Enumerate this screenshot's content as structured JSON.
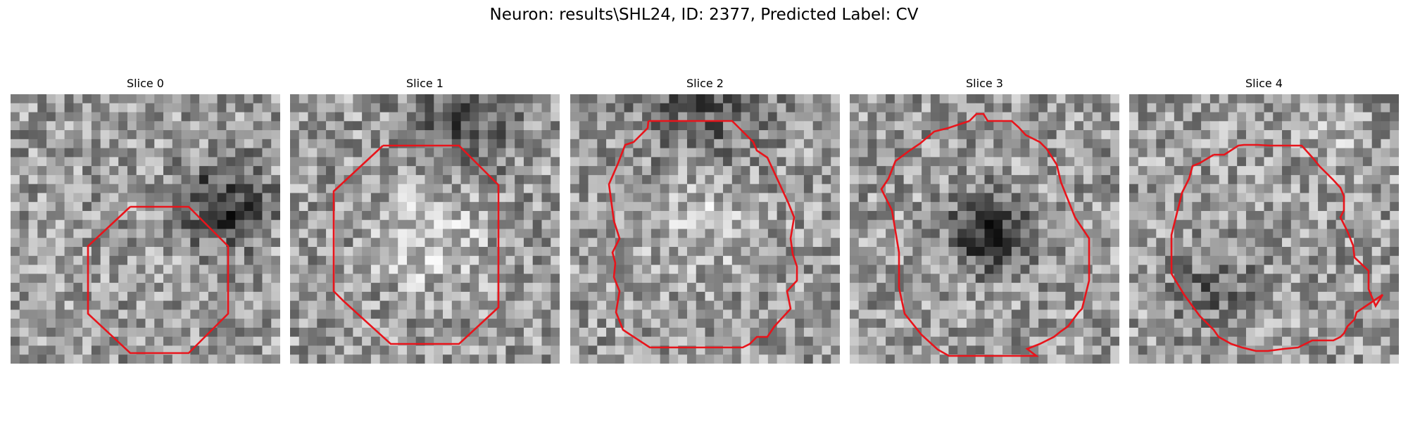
{
  "figure": {
    "title": "Neuron: results\\SHL24, ID: 2377, Predicted Label: CV"
  },
  "slices": [
    {
      "title": "Slice 0"
    },
    {
      "title": "Slice 1"
    },
    {
      "title": "Slice 2"
    },
    {
      "title": "Slice 3"
    },
    {
      "title": "Slice 4"
    }
  ],
  "colors": {
    "contour": "#e8141b",
    "background": "#ffffff"
  }
}
